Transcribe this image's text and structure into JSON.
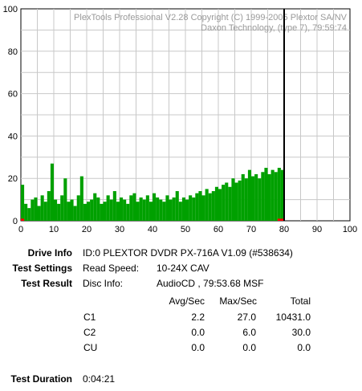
{
  "colors": {
    "c1_series": "#00a000",
    "c2_series": "#ff0000",
    "disc_end_marker": "#000000",
    "grid": "#c8c8c8",
    "watermark": "#9a9a9a"
  },
  "chart_data": {
    "type": "bar",
    "title": "",
    "xlabel": "",
    "ylabel": "",
    "xlim": [
      0,
      100
    ],
    "ylim": [
      0,
      100
    ],
    "x_ticks": [
      "0",
      "10",
      "20",
      "30",
      "40",
      "50",
      "60",
      "70",
      "80",
      "90",
      "100"
    ],
    "y_ticks": [
      "0",
      "20",
      "40",
      "60",
      "80",
      "100"
    ],
    "grid": true,
    "watermark": {
      "line1": "PlexTools Professional V2.28 Copyright (C) 1999-2005 Plextor SA/NV",
      "line2": "Daxon Technology, (type 7), 79:59:74"
    },
    "disc_end_marker_x": 80,
    "series": [
      {
        "key": "C1",
        "values_per_min": [
          17,
          8,
          6,
          10,
          11,
          7,
          12,
          9,
          14,
          27,
          10,
          8,
          12,
          20,
          9,
          10,
          7,
          12,
          21,
          8,
          9,
          10,
          13,
          11,
          8,
          9,
          12,
          10,
          14,
          9,
          11,
          10,
          8,
          12,
          13,
          9,
          11,
          10,
          12,
          9,
          13,
          11,
          10,
          9,
          12,
          10,
          11,
          14,
          9,
          11,
          10,
          12,
          11,
          13,
          14,
          12,
          15,
          13,
          14,
          16,
          15,
          17,
          18,
          16,
          20,
          18,
          19,
          22,
          20,
          24,
          21,
          22,
          20,
          23,
          25,
          22,
          24,
          23,
          25,
          24
        ]
      },
      {
        "key": "C2",
        "values_per_min": [
          1,
          0,
          0,
          0,
          0,
          0,
          0,
          0,
          0,
          0,
          0,
          0,
          0,
          0,
          0,
          0,
          0,
          0,
          0,
          0,
          0,
          0,
          0,
          0,
          0,
          0,
          0,
          0,
          0,
          0,
          0,
          0,
          0,
          0,
          0,
          0,
          0,
          0,
          0,
          0,
          0,
          0,
          0,
          0,
          0,
          0,
          0,
          0,
          0,
          0,
          0,
          0,
          0,
          0,
          0,
          0,
          0,
          0,
          0,
          0,
          0,
          0,
          0,
          0,
          0,
          0,
          0,
          0,
          0,
          0,
          0,
          0,
          0,
          0,
          0,
          0,
          0,
          0,
          1,
          1
        ]
      }
    ]
  },
  "info": {
    "drive_label": "Drive Info",
    "drive_value": "ID:0 PLEXTOR DVDR PX-716A V1.09 (#538634)",
    "settings_label": "Test Settings",
    "read_speed_label": "Read Speed:",
    "read_speed_value": "10-24X CAV",
    "result_label": "Test Result",
    "disc_info_label": "Disc Info:",
    "disc_info_value": "AudioCD , 79:53.68 MSF",
    "duration_label": "Test Duration",
    "duration_value": "0:04:21"
  },
  "results_table": {
    "headers": [
      "Avg/Sec",
      "Max/Sec",
      "Total"
    ],
    "rows": [
      {
        "name": "C1",
        "avg": "2.2",
        "max": "27.0",
        "total": "10431.0"
      },
      {
        "name": "C2",
        "avg": "0.0",
        "max": "6.0",
        "total": "30.0"
      },
      {
        "name": "CU",
        "avg": "0.0",
        "max": "0.0",
        "total": "0.0"
      }
    ]
  }
}
